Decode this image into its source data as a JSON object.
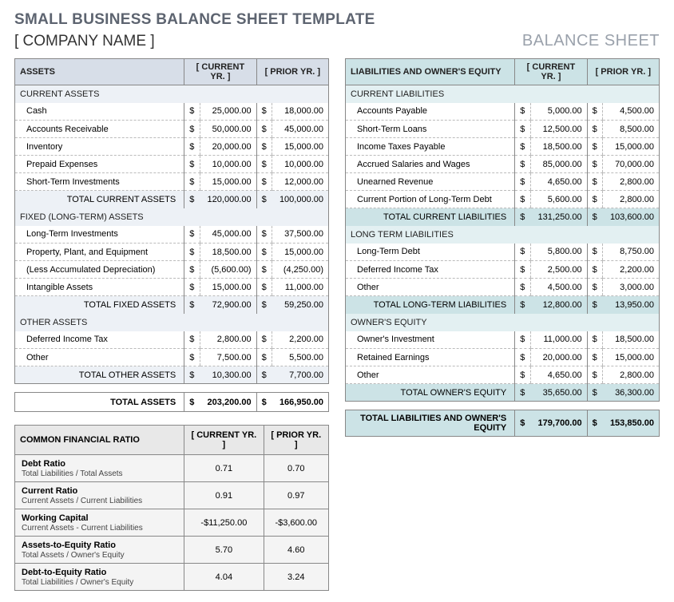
{
  "title": "SMALL BUSINESS BALANCE SHEET TEMPLATE",
  "company": "[ COMPANY NAME ]",
  "sheet_label": "BALANCE SHEET",
  "col_current": "[ CURRENT YR. ]",
  "col_prior": "[ PRIOR YR. ]",
  "assets": {
    "header": "ASSETS",
    "sections": [
      {
        "title": "CURRENT ASSETS",
        "rows": [
          {
            "label": "Cash",
            "cur": "25,000.00",
            "pri": "18,000.00"
          },
          {
            "label": "Accounts Receivable",
            "cur": "50,000.00",
            "pri": "45,000.00"
          },
          {
            "label": "Inventory",
            "cur": "20,000.00",
            "pri": "15,000.00"
          },
          {
            "label": "Prepaid Expenses",
            "cur": "10,000.00",
            "pri": "10,000.00"
          },
          {
            "label": "Short-Term Investments",
            "cur": "15,000.00",
            "pri": "12,000.00"
          }
        ],
        "total": {
          "label": "TOTAL CURRENT ASSETS",
          "cur": "120,000.00",
          "pri": "100,000.00"
        }
      },
      {
        "title": "FIXED (LONG-TERM) ASSETS",
        "rows": [
          {
            "label": "Long-Term Investments",
            "cur": "45,000.00",
            "pri": "37,500.00"
          },
          {
            "label": "Property, Plant, and Equipment",
            "cur": "18,500.00",
            "pri": "15,000.00"
          },
          {
            "label": "(Less Accumulated Depreciation)",
            "cur": "(5,600.00)",
            "pri": "(4,250.00)"
          },
          {
            "label": "Intangible Assets",
            "cur": "15,000.00",
            "pri": "11,000.00"
          }
        ],
        "total": {
          "label": "TOTAL FIXED ASSETS",
          "cur": "72,900.00",
          "pri": "59,250.00"
        }
      },
      {
        "title": "OTHER ASSETS",
        "rows": [
          {
            "label": "Deferred Income Tax",
            "cur": "2,800.00",
            "pri": "2,200.00"
          },
          {
            "label": "Other",
            "cur": "7,500.00",
            "pri": "5,500.00"
          }
        ],
        "total": {
          "label": "TOTAL OTHER ASSETS",
          "cur": "10,300.00",
          "pri": "7,700.00"
        }
      }
    ],
    "grand": {
      "label": "TOTAL ASSETS",
      "cur": "203,200.00",
      "pri": "166,950.00"
    }
  },
  "liab": {
    "header": "LIABILITIES AND OWNER'S EQUITY",
    "sections": [
      {
        "title": "CURRENT LIABILITIES",
        "rows": [
          {
            "label": "Accounts Payable",
            "cur": "5,000.00",
            "pri": "4,500.00"
          },
          {
            "label": "Short-Term Loans",
            "cur": "12,500.00",
            "pri": "8,500.00"
          },
          {
            "label": "Income Taxes Payable",
            "cur": "18,500.00",
            "pri": "15,000.00"
          },
          {
            "label": "Accrued Salaries and Wages",
            "cur": "85,000.00",
            "pri": "70,000.00"
          },
          {
            "label": "Unearned Revenue",
            "cur": "4,650.00",
            "pri": "2,800.00"
          },
          {
            "label": "Current Portion of Long-Term Debt",
            "cur": "5,600.00",
            "pri": "2,800.00"
          }
        ],
        "total": {
          "label": "TOTAL CURRENT LIABILITIES",
          "cur": "131,250.00",
          "pri": "103,600.00"
        }
      },
      {
        "title": "LONG TERM LIABILITIES",
        "rows": [
          {
            "label": "Long-Term Debt",
            "cur": "5,800.00",
            "pri": "8,750.00"
          },
          {
            "label": "Deferred Income Tax",
            "cur": "2,500.00",
            "pri": "2,200.00"
          },
          {
            "label": "Other",
            "cur": "4,500.00",
            "pri": "3,000.00"
          }
        ],
        "total": {
          "label": "TOTAL LONG-TERM LIABILITIES",
          "cur": "12,800.00",
          "pri": "13,950.00"
        }
      },
      {
        "title": "OWNER'S EQUITY",
        "rows": [
          {
            "label": "Owner's Investment",
            "cur": "11,000.00",
            "pri": "18,500.00"
          },
          {
            "label": "Retained Earnings",
            "cur": "20,000.00",
            "pri": "15,000.00"
          },
          {
            "label": "Other",
            "cur": "4,650.00",
            "pri": "2,800.00"
          }
        ],
        "total": {
          "label": "TOTAL OWNER'S EQUITY",
          "cur": "35,650.00",
          "pri": "36,300.00"
        }
      }
    ],
    "grand": {
      "label": "TOTAL LIABILITIES AND OWNER'S EQUITY",
      "cur": "179,700.00",
      "pri": "153,850.00"
    }
  },
  "ratios": {
    "header": "COMMON FINANCIAL RATIO",
    "rows": [
      {
        "title": "Debt Ratio",
        "desc": "Total Liabilities / Total Assets",
        "cur": "0.71",
        "pri": "0.70"
      },
      {
        "title": "Current Ratio",
        "desc": "Current Assets / Current Liabilities",
        "cur": "0.91",
        "pri": "0.97"
      },
      {
        "title": "Working Capital",
        "desc": "Current Assets - Current Liabilities",
        "cur": "-$11,250.00",
        "pri": "-$3,600.00"
      },
      {
        "title": "Assets-to-Equity Ratio",
        "desc": "Total Assets / Owner's Equity",
        "cur": "5.70",
        "pri": "4.60"
      },
      {
        "title": "Debt-to-Equity Ratio",
        "desc": "Total Liabilities / Owner's Equity",
        "cur": "4.04",
        "pri": "3.24"
      }
    ]
  }
}
